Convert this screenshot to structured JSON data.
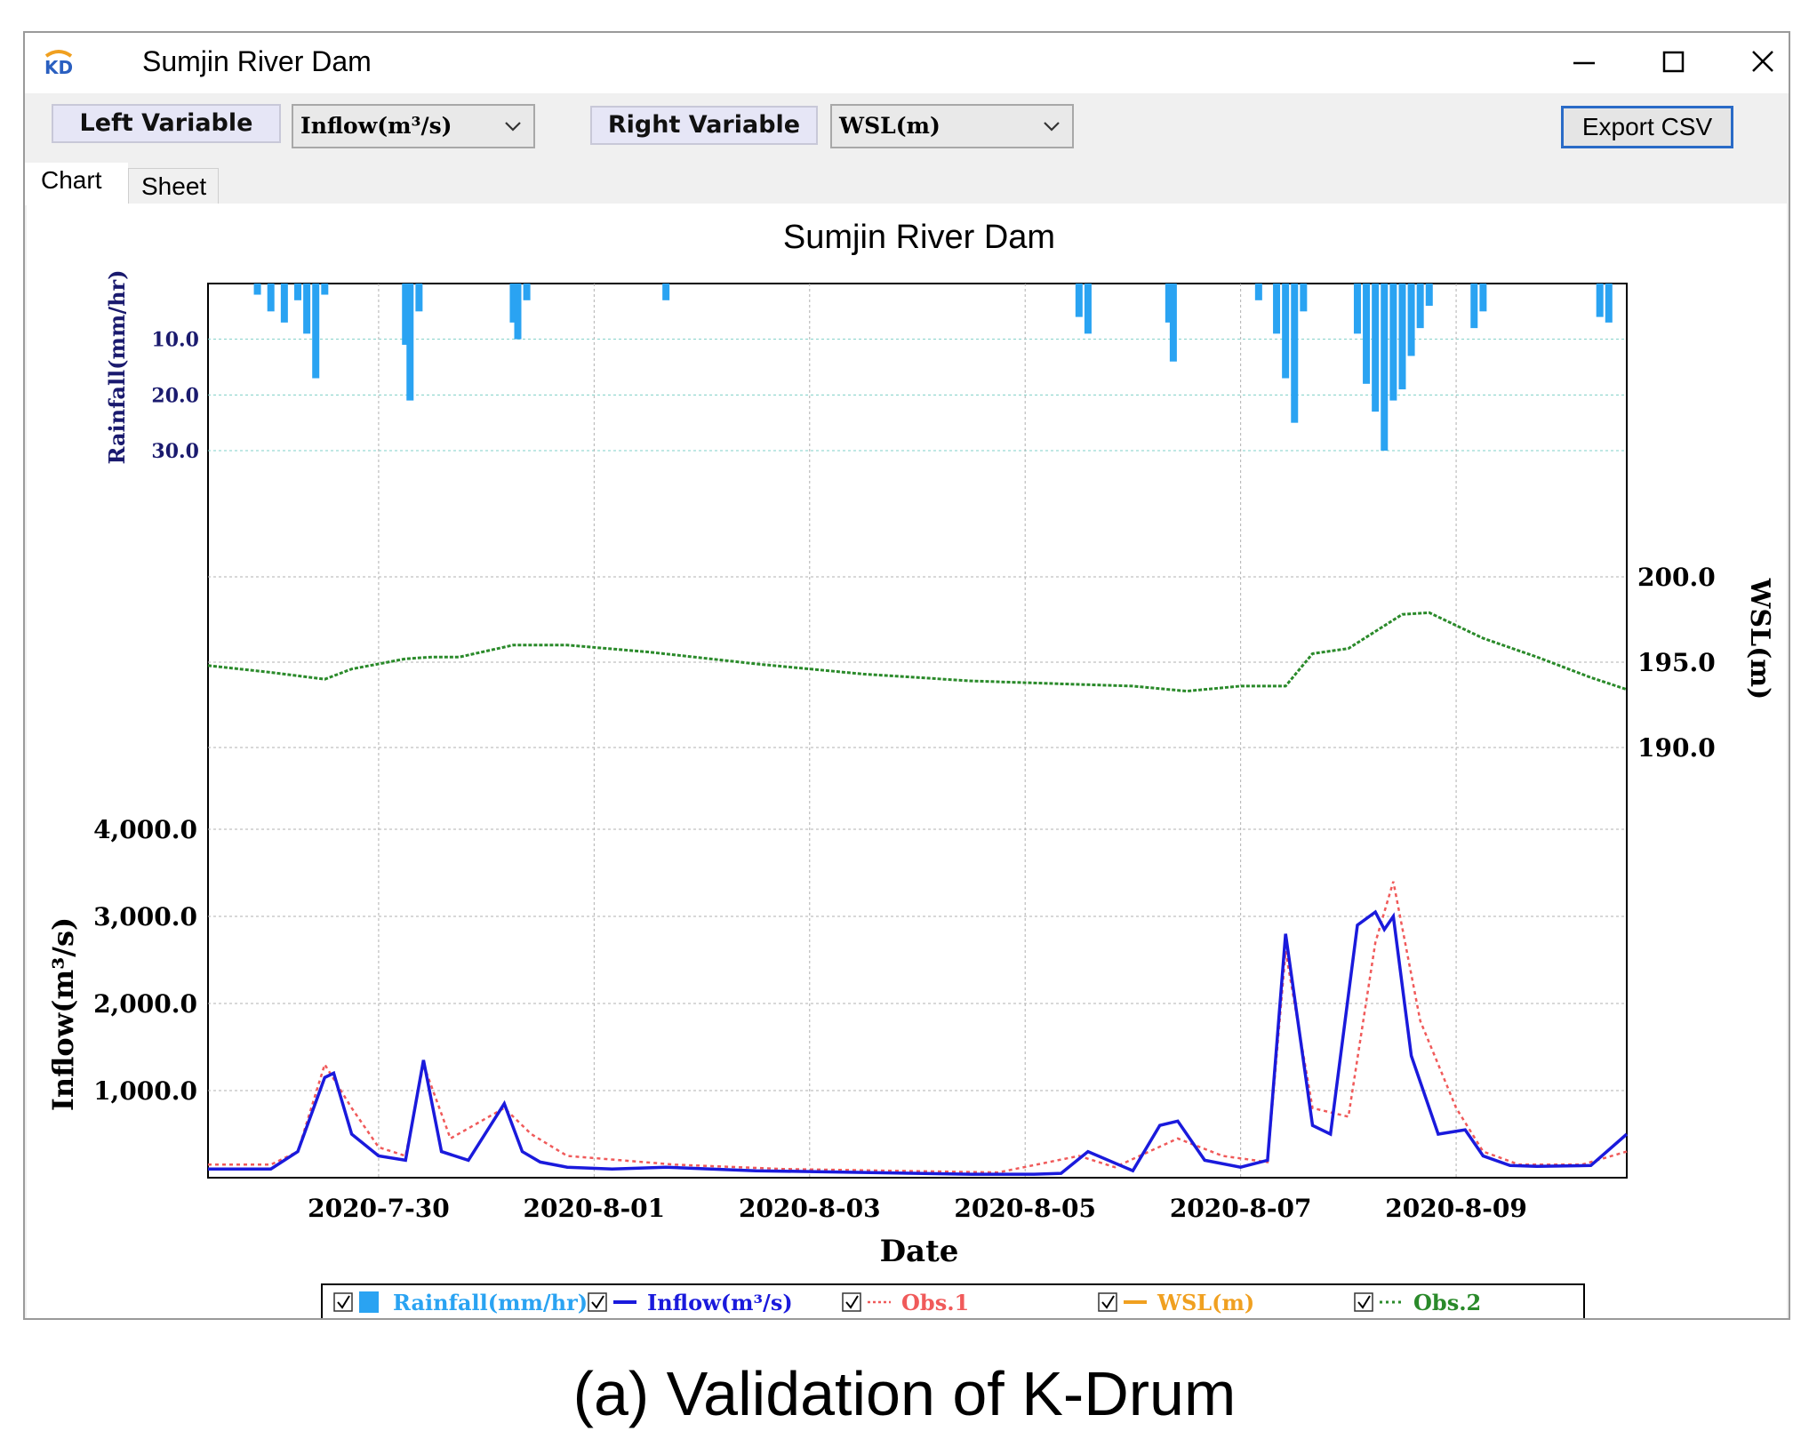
{
  "window": {
    "title": "Sumjin River Dam"
  },
  "toolbar": {
    "left_label": "Left Variable",
    "left_value": "Inflow(m³/s)",
    "right_label": "Right Variable",
    "right_value": "WSL(m)",
    "export_label": "Export CSV"
  },
  "tabs": [
    {
      "label": "Chart",
      "active": true
    },
    {
      "label": "Sheet",
      "active": false
    }
  ],
  "caption": "(a) Validation of K-Drum",
  "colors": {
    "rainfall": "#2aa3f2",
    "inflow": "#1a1adc",
    "obs1": "#f05a5a",
    "wsl": "#f0a020",
    "obs2": "#2a8a2a",
    "axis_label": "#1a1a6e"
  },
  "chart_data": {
    "type": "line",
    "title": "Sumjin River Dam",
    "xlabel": "Date",
    "x_range": [
      "2020-07-28 10:00",
      "2020-08-10 14:00"
    ],
    "x_ticks": [
      "2020-7-30",
      "2020-8-01",
      "2020-8-03",
      "2020-8-05",
      "2020-8-07",
      "2020-8-09"
    ],
    "rainfall_axis": {
      "label": "Rainfall(mm/hr)",
      "ticks": [
        "10.0",
        "20.0",
        "30.0"
      ],
      "inverted": true,
      "range": [
        0,
        40
      ]
    },
    "left_axis": {
      "label": "Inflow(m³/s)",
      "ticks": [
        "1,000.0",
        "2,000.0",
        "3,000.0",
        "4,000.0"
      ],
      "range": [
        0,
        4000
      ]
    },
    "right_axis": {
      "label": "WSL(m)",
      "ticks": [
        "190.0",
        "195.0",
        "200.0"
      ],
      "range": [
        190,
        200
      ]
    },
    "legend": [
      "Rainfall(mm/hr)",
      "Inflow(m³/s)",
      "Obs.1",
      "WSL(m)",
      "Obs.2"
    ],
    "rainfall": {
      "name": "Rainfall(mm/hr)",
      "x": [
        "07-28 21:00",
        "07-29 00:00",
        "07-29 03:00",
        "07-29 06:00",
        "07-29 08:00",
        "07-29 10:00",
        "07-29 12:00",
        "07-30 06:00",
        "07-30 07:00",
        "07-30 09:00",
        "07-31 06:00",
        "07-31 07:00",
        "07-31 09:00",
        "08-01 16:00",
        "08-05 12:00",
        "08-05 14:00",
        "08-06 08:00",
        "08-06 09:00",
        "08-07 04:00",
        "08-07 08:00",
        "08-07 10:00",
        "08-07 12:00",
        "08-07 14:00",
        "08-08 02:00",
        "08-08 04:00",
        "08-08 06:00",
        "08-08 08:00",
        "08-08 10:00",
        "08-08 12:00",
        "08-08 14:00",
        "08-08 16:00",
        "08-08 18:00",
        "08-09 04:00",
        "08-09 06:00",
        "08-10 08:00",
        "08-10 10:00"
      ],
      "values": [
        2,
        5,
        7,
        3,
        9,
        17,
        2,
        11,
        21,
        5,
        7,
        10,
        3,
        3,
        6,
        9,
        7,
        14,
        3,
        9,
        17,
        25,
        5,
        9,
        18,
        23,
        30,
        21,
        19,
        13,
        8,
        4,
        8,
        5,
        6,
        7
      ]
    },
    "inflow": {
      "name": "Inflow(m³/s)",
      "x": [
        "07-28 10:00",
        "07-29 00:00",
        "07-29 06:00",
        "07-29 12:00",
        "07-29 14:00",
        "07-29 18:00",
        "07-30 00:00",
        "07-30 06:00",
        "07-30 10:00",
        "07-30 14:00",
        "07-30 20:00",
        "07-31 04:00",
        "07-31 08:00",
        "07-31 12:00",
        "07-31 18:00",
        "08-01 04:00",
        "08-01 16:00",
        "08-02 12:00",
        "08-03 12:00",
        "08-04 12:00",
        "08-05 02:00",
        "08-05 08:00",
        "08-05 14:00",
        "08-06 00:00",
        "08-06 06:00",
        "08-06 10:00",
        "08-06 16:00",
        "08-07 00:00",
        "08-07 06:00",
        "08-07 10:00",
        "08-07 16:00",
        "08-07 20:00",
        "08-08 02:00",
        "08-08 06:00",
        "08-08 08:00",
        "08-08 10:00",
        "08-08 14:00",
        "08-08 20:00",
        "08-09 02:00",
        "08-09 06:00",
        "08-09 12:00",
        "08-09 18:00",
        "08-10 06:00",
        "08-10 14:00"
      ],
      "values": [
        100,
        100,
        300,
        1150,
        1200,
        500,
        250,
        200,
        1350,
        300,
        200,
        850,
        300,
        180,
        120,
        100,
        120,
        80,
        60,
        40,
        40,
        50,
        300,
        80,
        600,
        650,
        200,
        120,
        200,
        2800,
        600,
        500,
        2900,
        3050,
        2850,
        3000,
        1400,
        500,
        550,
        250,
        140,
        130,
        140,
        500
      ]
    },
    "obs1": {
      "name": "Obs.1",
      "x": [
        "07-28 10:00",
        "07-29 00:00",
        "07-29 06:00",
        "07-29 12:00",
        "07-29 18:00",
        "07-30 00:00",
        "07-30 06:00",
        "07-30 10:00",
        "07-30 16:00",
        "07-31 04:00",
        "07-31 10:00",
        "07-31 18:00",
        "08-01 06:00",
        "08-01 18:00",
        "08-02 18:00",
        "08-03 18:00",
        "08-04 18:00",
        "08-05 12:00",
        "08-05 20:00",
        "08-06 10:00",
        "08-06 20:00",
        "08-07 06:00",
        "08-07 10:00",
        "08-07 16:00",
        "08-08 00:00",
        "08-08 06:00",
        "08-08 10:00",
        "08-08 16:00",
        "08-09 00:00",
        "08-09 06:00",
        "08-09 14:00",
        "08-10 04:00",
        "08-10 14:00"
      ],
      "values": [
        150,
        150,
        300,
        1300,
        800,
        350,
        250,
        1300,
        450,
        800,
        500,
        250,
        200,
        150,
        100,
        80,
        60,
        250,
        120,
        450,
        250,
        180,
        2600,
        800,
        700,
        2700,
        3400,
        1800,
        800,
        300,
        150,
        150,
        300
      ]
    },
    "obs2": {
      "name": "Obs.2",
      "x": [
        "07-28 10:00",
        "07-29 00:00",
        "07-29 12:00",
        "07-29 18:00",
        "07-30 06:00",
        "07-30 12:00",
        "07-30 18:00",
        "07-31 06:00",
        "07-31 18:00",
        "08-01 12:00",
        "08-02 12:00",
        "08-03 12:00",
        "08-04 12:00",
        "08-05 12:00",
        "08-06 00:00",
        "08-06 12:00",
        "08-07 00:00",
        "08-07 10:00",
        "08-07 16:00",
        "08-08 00:00",
        "08-08 12:00",
        "08-08 18:00",
        "08-09 06:00",
        "08-09 18:00",
        "08-10 06:00",
        "08-10 14:00"
      ],
      "values": [
        194.8,
        194.4,
        194.0,
        194.6,
        195.2,
        195.3,
        195.3,
        196.0,
        196.0,
        195.6,
        194.9,
        194.3,
        193.9,
        193.7,
        193.6,
        193.3,
        193.6,
        193.6,
        195.5,
        195.8,
        197.8,
        197.9,
        196.4,
        195.3,
        194.1,
        193.4
      ]
    }
  }
}
